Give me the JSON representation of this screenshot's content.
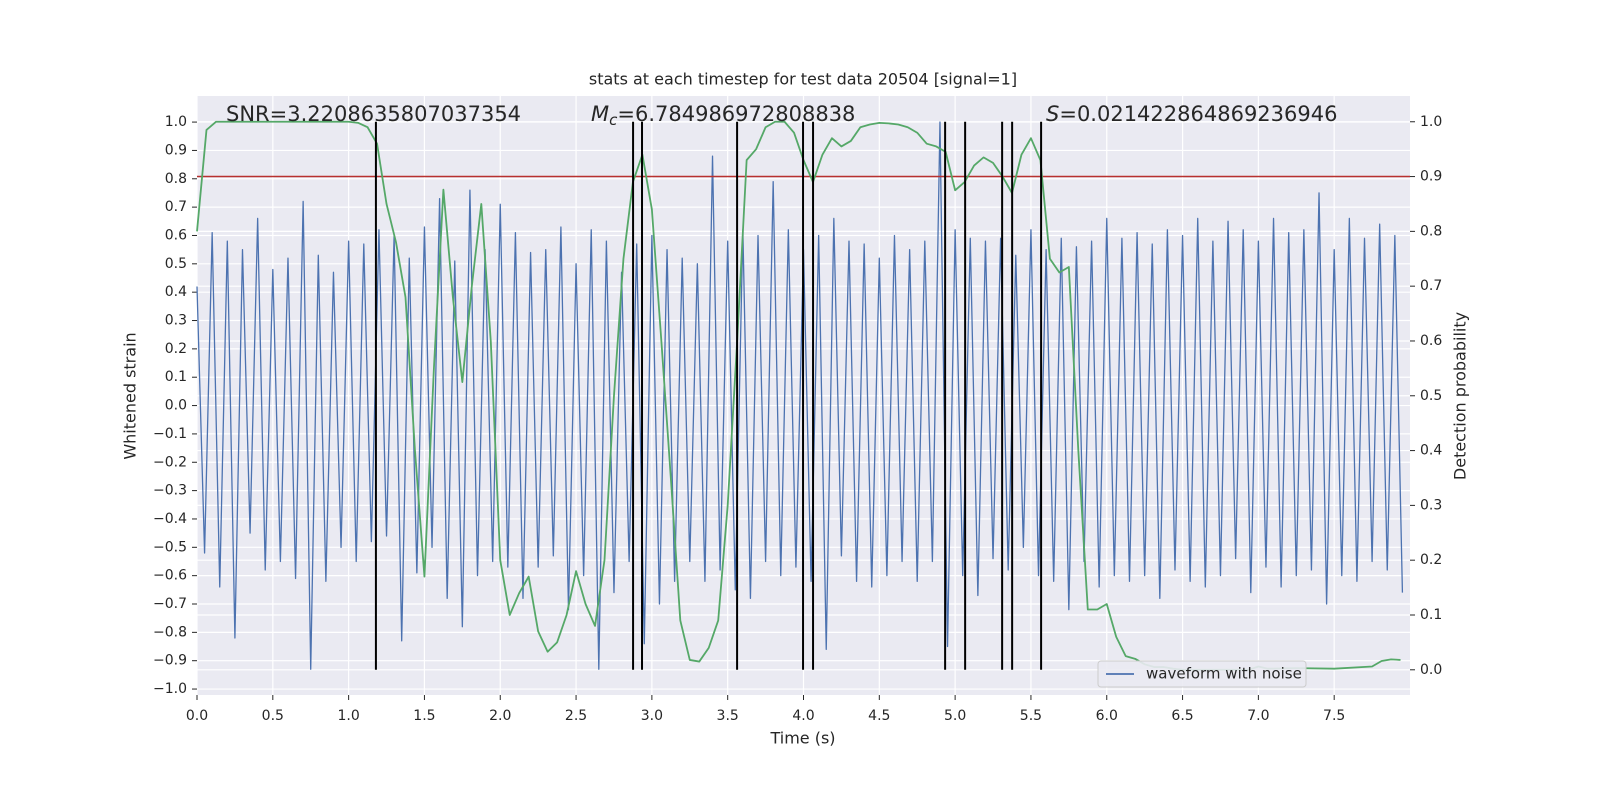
{
  "chart_data": {
    "type": "line",
    "title": "stats at each timestep for test data 20504 [signal=1]",
    "xlabel": "Time (s)",
    "ylabel": "Whitened strain",
    "y2label": "Detection probability",
    "xlim": [
      0,
      8
    ],
    "ylim": [
      -1.021,
      1.092
    ],
    "y2lim": [
      -0.046,
      1.047
    ],
    "xticks": [
      {
        "value": 0,
        "label": "0.0"
      },
      0.5,
      {
        "value": 1,
        "label": "1.0"
      },
      1.5,
      {
        "value": 2,
        "label": "2.0"
      },
      2.5,
      {
        "value": 3,
        "label": "3.0"
      },
      3.5,
      {
        "value": 4,
        "label": "4.0"
      },
      4.5,
      {
        "value": 5,
        "label": "5.0"
      },
      5.5,
      {
        "value": 6,
        "label": "6.0"
      },
      6.5,
      {
        "value": 7,
        "label": "7.0"
      },
      7.5
    ],
    "yticks": [
      {
        "value": 1,
        "label": "1.0"
      },
      0.9,
      0.8,
      0.7,
      0.6,
      0.5,
      0.4,
      0.3,
      0.2,
      0.1,
      {
        "value": 0,
        "label": "0.0"
      },
      {
        "value": -0.1,
        "label": "−0.1"
      },
      {
        "value": -0.2,
        "label": "−0.2"
      },
      {
        "value": -0.3,
        "label": "−0.3"
      },
      {
        "value": -0.4,
        "label": "−0.4"
      },
      {
        "value": -0.5,
        "label": "−0.5"
      },
      {
        "value": -0.6,
        "label": "−0.6"
      },
      {
        "value": -0.7,
        "label": "−0.7"
      },
      {
        "value": -0.8,
        "label": "−0.8"
      },
      {
        "value": -0.9,
        "label": "−0.9"
      },
      {
        "value": -1,
        "label": "−1.0"
      }
    ],
    "y2ticks": [
      {
        "value": 1,
        "label": "1.0"
      },
      0.9,
      0.8,
      0.7,
      0.6,
      0.5,
      0.4,
      0.3,
      0.2,
      0.1,
      {
        "value": 0,
        "label": "0.0"
      }
    ],
    "grid": true,
    "legend": "lower right",
    "series": [
      {
        "name": "waveform with noise",
        "color": "#4c72b0",
        "x": [
          0,
          0.05,
          0.1,
          0.15,
          0.2,
          0.25,
          0.3,
          0.35,
          0.4,
          0.45,
          0.5,
          0.55,
          0.6,
          0.65,
          0.7,
          0.75,
          0.8,
          0.85,
          0.9,
          0.95,
          1,
          1.05,
          1.1,
          1.15,
          1.2,
          1.25,
          1.3,
          1.35,
          1.4,
          1.45,
          1.5,
          1.55,
          1.6,
          1.65,
          1.7,
          1.75,
          1.8,
          1.85,
          1.9,
          1.95,
          2,
          2.05,
          2.1,
          2.15,
          2.2,
          2.25,
          2.3,
          2.35,
          2.4,
          2.45,
          2.5,
          2.55,
          2.6,
          2.65,
          2.7,
          2.75,
          2.8,
          2.85,
          2.9,
          2.95,
          3,
          3.05,
          3.1,
          3.15,
          3.2,
          3.25,
          3.3,
          3.35,
          3.4,
          3.45,
          3.5,
          3.55,
          3.6,
          3.65,
          3.7,
          3.75,
          3.8,
          3.85,
          3.9,
          3.95,
          4,
          4.05,
          4.1,
          4.15,
          4.2,
          4.25,
          4.3,
          4.35,
          4.4,
          4.45,
          4.5,
          4.55,
          4.6,
          4.65,
          4.7,
          4.75,
          4.8,
          4.85,
          4.9,
          4.95,
          5,
          5.05,
          5.1,
          5.15,
          5.2,
          5.25,
          5.3,
          5.35,
          5.4,
          5.45,
          5.5,
          5.55,
          5.6,
          5.65,
          5.7,
          5.75,
          5.8,
          5.85,
          5.9,
          5.95,
          6,
          6.05,
          6.1,
          6.15,
          6.2,
          6.25,
          6.3,
          6.35,
          6.4,
          6.45,
          6.5,
          6.55,
          6.6,
          6.65,
          6.7,
          6.75,
          6.8,
          6.85,
          6.9,
          6.95,
          7,
          7.05,
          7.1,
          7.15,
          7.2,
          7.25,
          7.3,
          7.35,
          7.4,
          7.45,
          7.5,
          7.55,
          7.6,
          7.65,
          7.7,
          7.75,
          7.8,
          7.85,
          7.9,
          7.95
        ],
        "values": [
          0.42,
          -0.52,
          0.61,
          -0.64,
          0.58,
          -0.82,
          0.55,
          -0.45,
          0.66,
          -0.58,
          0.48,
          -0.55,
          0.52,
          -0.61,
          0.72,
          -0.93,
          0.53,
          -0.62,
          0.47,
          -0.5,
          0.58,
          -0.55,
          0.57,
          -0.48,
          0.62,
          -0.46,
          0.6,
          -0.83,
          0.52,
          -0.59,
          0.63,
          -0.5,
          0.73,
          -0.68,
          0.51,
          -0.78,
          0.76,
          -0.6,
          0.55,
          -0.55,
          0.71,
          -0.57,
          0.61,
          -0.68,
          0.54,
          -0.57,
          0.55,
          -0.53,
          0.63,
          -0.72,
          0.5,
          -0.6,
          0.62,
          -0.93,
          0.58,
          -0.66,
          0.47,
          -0.55,
          0.57,
          -0.84,
          0.6,
          -0.7,
          0.55,
          -0.62,
          0.52,
          -0.55,
          0.5,
          -0.62,
          0.88,
          -0.58,
          0.58,
          -0.65,
          0.62,
          -0.68,
          0.6,
          -0.55,
          0.79,
          -0.6,
          0.62,
          -0.57,
          0.55,
          -0.62,
          0.6,
          -0.86,
          0.66,
          -0.53,
          0.58,
          -0.62,
          0.57,
          -0.64,
          0.52,
          -0.6,
          0.6,
          -0.55,
          0.55,
          -0.62,
          0.58,
          -0.55,
          1.0,
          -0.85,
          0.62,
          -0.6,
          0.59,
          -0.67,
          0.58,
          -0.54,
          0.59,
          -0.58,
          0.53,
          -0.5,
          0.62,
          -0.6,
          0.55,
          -0.62,
          0.59,
          -0.72,
          0.56,
          -0.55,
          0.58,
          -0.64,
          0.66,
          -0.6,
          0.59,
          -0.62,
          0.61,
          -0.6,
          0.57,
          -0.68,
          0.62,
          -0.58,
          0.6,
          -0.62,
          0.66,
          -0.64,
          0.58,
          -0.6,
          0.65,
          -0.54,
          0.62,
          -0.66,
          0.58,
          -0.57,
          0.66,
          -0.64,
          0.61,
          -0.6,
          0.62,
          -0.58,
          0.75,
          -0.7,
          0.55,
          -0.6,
          0.66,
          -0.62,
          0.59,
          -0.55,
          0.64,
          -0.58,
          0.6,
          -0.66
        ]
      },
      {
        "color": "#55a868",
        "axis": "y2",
        "x": [
          0,
          0.0625,
          0.125,
          1,
          1.0625,
          1.125,
          1.1875,
          1.25,
          1.3125,
          1.375,
          1.4375,
          1.5,
          1.5625,
          1.625,
          1.6875,
          1.75,
          1.8125,
          1.875,
          1.9375,
          2,
          2.0625,
          2.125,
          2.1875,
          2.25,
          2.3125,
          2.375,
          2.4375,
          2.5,
          2.5625,
          2.625,
          2.6875,
          2.75,
          2.8125,
          2.875,
          2.9375,
          3,
          3.0625,
          3.125,
          3.1875,
          3.25,
          3.3125,
          3.375,
          3.4375,
          3.5,
          3.5625,
          3.625,
          3.6875,
          3.75,
          3.8125,
          3.875,
          3.9375,
          4,
          4.0625,
          4.125,
          4.1875,
          4.25,
          4.3125,
          4.375,
          4.4375,
          4.5,
          4.5625,
          4.625,
          4.6875,
          4.75,
          4.8125,
          4.875,
          4.9375,
          5,
          5.0625,
          5.125,
          5.1875,
          5.25,
          5.3125,
          5.375,
          5.4375,
          5.5,
          5.5625,
          5.625,
          5.6875,
          5.75,
          5.8125,
          5.875,
          5.9375,
          6,
          6.0625,
          6.125,
          6.1875,
          6.25,
          6.3125,
          6.375,
          6.4375,
          6.5,
          6.75,
          6.9375,
          7,
          7.0625,
          7.25,
          7.5,
          7.75,
          7.8125,
          7.875,
          7.9375
        ],
        "values": [
          0.8,
          0.985,
          1.0,
          1.0,
          0.998,
          0.99,
          0.96,
          0.85,
          0.78,
          0.68,
          0.4,
          0.17,
          0.55,
          0.876,
          0.68,
          0.525,
          0.7,
          0.85,
          0.6,
          0.2,
          0.1,
          0.14,
          0.17,
          0.07,
          0.033,
          0.05,
          0.1,
          0.18,
          0.12,
          0.08,
          0.2,
          0.5,
          0.75,
          0.89,
          0.94,
          0.84,
          0.6,
          0.35,
          0.09,
          0.018,
          0.015,
          0.04,
          0.09,
          0.3,
          0.6,
          0.93,
          0.95,
          0.99,
          1.0,
          1.0,
          0.98,
          0.93,
          0.89,
          0.94,
          0.97,
          0.955,
          0.965,
          0.99,
          0.995,
          0.998,
          0.997,
          0.995,
          0.99,
          0.98,
          0.96,
          0.955,
          0.945,
          0.875,
          0.89,
          0.92,
          0.935,
          0.925,
          0.9,
          0.87,
          0.94,
          0.97,
          0.93,
          0.75,
          0.725,
          0.735,
          0.4,
          0.11,
          0.11,
          0.12,
          0.06,
          0.025,
          0.02,
          0.01,
          0.005,
          0.005,
          0.002,
          0.0,
          0.0,
          0.0,
          0.006,
          0.002,
          0.003,
          0.002,
          0.006,
          0.016,
          0.019,
          0.018
        ]
      }
    ],
    "threshold": {
      "value": 0.9,
      "axis": "y2",
      "color": "#b8312f"
    },
    "events": {
      "x": [
        1.18,
        2.876,
        2.935,
        3.562,
        3.997,
        4.063,
        4.934,
        5.066,
        5.31,
        5.376,
        5.567
      ],
      "axis": "y2",
      "ymin": 0,
      "ymax": 1,
      "color": "#000000"
    },
    "annotations": [
      {
        "text": "SNR=3.2208635807037354"
      },
      {
        "symbol": "M",
        "subscript": "c",
        "text": "=6.784986972808838"
      },
      {
        "symbol": "S",
        "text": "=0.021422864869236946"
      }
    ]
  }
}
